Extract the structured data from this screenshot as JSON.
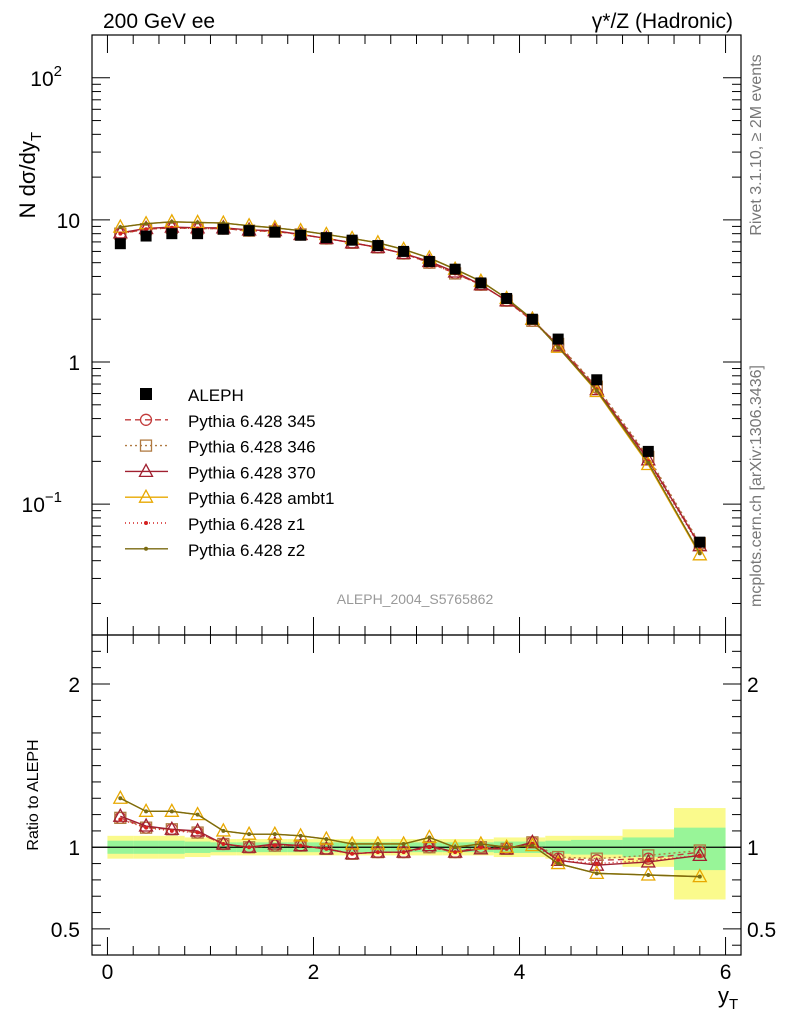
{
  "header": {
    "left": "200 GeV ee",
    "right": "γ*/Z (Hadronic)"
  },
  "side_labels": {
    "rivet": "Rivet 3.1.10, ≥ 2M events",
    "mcplots": "mcplots.cern.ch [arXiv:1306.3436]"
  },
  "watermark": "ALEPH_2004_S5765862",
  "chart_data": [
    {
      "type": "scatter",
      "ylabel_main": "N dσ/dy",
      "ylabel_sub": "T",
      "yscale": "log",
      "xlim": [
        -0.15,
        6.15
      ],
      "ylim": [
        0.012,
        200
      ],
      "y_ticks": [
        {
          "value": 0.1,
          "base": "10",
          "exp": "−1"
        },
        {
          "value": 1,
          "base": "1",
          "exp": ""
        },
        {
          "value": 10,
          "base": "10",
          "exp": ""
        },
        {
          "value": 100,
          "base": "10",
          "exp": "2"
        }
      ],
      "x": [
        0.125,
        0.375,
        0.625,
        0.875,
        1.125,
        1.375,
        1.625,
        1.875,
        2.125,
        2.375,
        2.625,
        2.875,
        3.125,
        3.375,
        3.625,
        3.875,
        4.125,
        4.375,
        4.75,
        5.25,
        5.75
      ],
      "data": {
        "name": "ALEPH",
        "values": [
          6.8,
          7.7,
          8.0,
          8.0,
          8.6,
          8.4,
          8.2,
          7.8,
          7.5,
          7.2,
          6.6,
          6.0,
          5.1,
          4.5,
          3.6,
          2.8,
          2.0,
          1.45,
          0.75,
          0.235,
          0.054
        ]
      },
      "series": [
        {
          "name": "Pythia 6.428 345",
          "color": "#c23b3b",
          "dash": "6,4",
          "marker": "circle",
          "values": [
            8.0,
            8.6,
            8.8,
            8.7,
            8.7,
            8.4,
            8.3,
            7.9,
            7.4,
            6.9,
            6.4,
            5.8,
            5.0,
            4.2,
            3.5,
            2.7,
            1.95,
            1.33,
            0.66,
            0.21,
            0.052
          ]
        },
        {
          "name": "Pythia 6.428 346",
          "color": "#b07a42",
          "dash": "2,3",
          "marker": "square",
          "values": [
            8.0,
            8.6,
            8.8,
            8.7,
            8.7,
            8.4,
            8.3,
            7.9,
            7.4,
            6.9,
            6.4,
            5.8,
            5.0,
            4.2,
            3.5,
            2.7,
            1.95,
            1.34,
            0.67,
            0.215,
            0.053
          ]
        },
        {
          "name": "Pythia 6.428 370",
          "color": "#a02030",
          "dash": "",
          "marker": "triangle",
          "values": [
            8.1,
            8.7,
            8.9,
            8.8,
            8.8,
            8.5,
            8.4,
            7.9,
            7.4,
            6.9,
            6.4,
            5.8,
            5.1,
            4.3,
            3.5,
            2.7,
            2.0,
            1.3,
            0.64,
            0.205,
            0.051
          ]
        },
        {
          "name": "Pythia 6.428 ambt1",
          "color": "#e8a800",
          "dash": "",
          "marker": "triangle",
          "values": [
            8.9,
            9.4,
            9.7,
            9.6,
            9.5,
            9.1,
            8.8,
            8.4,
            7.9,
            7.4,
            6.9,
            6.2,
            5.4,
            4.5,
            3.7,
            2.8,
            2.0,
            1.27,
            0.62,
            0.19,
            0.044
          ]
        },
        {
          "name": "Pythia 6.428 z1",
          "color": "#d42020",
          "dash": "1,3",
          "marker": "dot",
          "values": [
            8.0,
            8.6,
            8.8,
            8.7,
            8.7,
            8.4,
            8.3,
            7.9,
            7.4,
            6.9,
            6.4,
            5.8,
            5.0,
            4.2,
            3.5,
            2.7,
            1.95,
            1.3,
            0.64,
            0.2,
            0.05
          ]
        },
        {
          "name": "Pythia 6.428 z2",
          "color": "#7a6a10",
          "dash": "",
          "marker": "dot",
          "values": [
            8.9,
            9.4,
            9.7,
            9.6,
            9.5,
            9.1,
            8.8,
            8.4,
            7.9,
            7.4,
            6.9,
            6.2,
            5.4,
            4.5,
            3.7,
            2.8,
            2.0,
            1.27,
            0.63,
            0.195,
            0.045
          ]
        }
      ]
    },
    {
      "type": "line",
      "ylabel": "Ratio to ALEPH",
      "xlabel_main": "y",
      "xlabel_sub": "T",
      "xlim": [
        -0.15,
        6.15
      ],
      "ylim": [
        0.34,
        2.3
      ],
      "x_ticks": [
        0,
        2,
        4,
        6
      ],
      "y_ticks": [
        0.5,
        1,
        2
      ],
      "bands": {
        "edges": [
          0,
          0.25,
          0.5,
          0.75,
          1.0,
          1.25,
          1.5,
          1.75,
          2.0,
          2.25,
          2.5,
          2.75,
          3.0,
          3.25,
          3.5,
          3.75,
          4.0,
          4.25,
          4.5,
          5.0,
          5.5,
          6.0
        ],
        "yellow": [
          [
            0.93,
            1.07
          ],
          [
            0.93,
            1.07
          ],
          [
            0.93,
            1.07
          ],
          [
            0.94,
            1.06
          ],
          [
            0.95,
            1.05
          ],
          [
            0.95,
            1.05
          ],
          [
            0.95,
            1.05
          ],
          [
            0.95,
            1.05
          ],
          [
            0.95,
            1.05
          ],
          [
            0.95,
            1.05
          ],
          [
            0.95,
            1.05
          ],
          [
            0.95,
            1.05
          ],
          [
            0.95,
            1.05
          ],
          [
            0.95,
            1.05
          ],
          [
            0.95,
            1.05
          ],
          [
            0.94,
            1.06
          ],
          [
            0.94,
            1.06
          ],
          [
            0.93,
            1.07
          ],
          [
            0.93,
            1.07
          ],
          [
            0.88,
            1.11
          ],
          [
            0.68,
            1.24
          ]
        ],
        "green": [
          [
            0.96,
            1.04
          ],
          [
            0.96,
            1.04
          ],
          [
            0.96,
            1.04
          ],
          [
            0.965,
            1.035
          ],
          [
            0.97,
            1.03
          ],
          [
            0.97,
            1.03
          ],
          [
            0.97,
            1.03
          ],
          [
            0.97,
            1.03
          ],
          [
            0.97,
            1.03
          ],
          [
            0.97,
            1.03
          ],
          [
            0.97,
            1.03
          ],
          [
            0.97,
            1.03
          ],
          [
            0.97,
            1.03
          ],
          [
            0.97,
            1.03
          ],
          [
            0.97,
            1.03
          ],
          [
            0.965,
            1.035
          ],
          [
            0.965,
            1.035
          ],
          [
            0.96,
            1.04
          ],
          [
            0.955,
            1.045
          ],
          [
            0.94,
            1.06
          ],
          [
            0.86,
            1.12
          ]
        ],
        "green_color": "#98f598",
        "yellow_color": "#fafa8c"
      },
      "series": [
        {
          "name": "Pythia 6.428 345",
          "values": [
            1.18,
            1.12,
            1.11,
            1.09,
            1.02,
            1.0,
            1.01,
            1.01,
            0.99,
            0.96,
            0.97,
            0.97,
            1.0,
            0.97,
            1.0,
            0.99,
            1.03,
            0.93,
            0.92,
            0.93,
            0.97
          ]
        },
        {
          "name": "Pythia 6.428 346",
          "values": [
            1.18,
            1.12,
            1.11,
            1.09,
            1.02,
            1.0,
            1.01,
            1.01,
            0.99,
            0.96,
            0.97,
            0.97,
            1.0,
            0.97,
            1.0,
            0.99,
            1.03,
            0.94,
            0.93,
            0.95,
            0.98
          ]
        },
        {
          "name": "Pythia 6.428 370",
          "values": [
            1.19,
            1.13,
            1.11,
            1.1,
            1.02,
            1.0,
            1.02,
            1.01,
            0.99,
            0.96,
            0.97,
            0.97,
            1.01,
            0.97,
            0.99,
            0.99,
            1.03,
            0.92,
            0.89,
            0.91,
            0.95
          ]
        },
        {
          "name": "Pythia 6.428 ambt1",
          "values": [
            1.3,
            1.22,
            1.22,
            1.2,
            1.1,
            1.08,
            1.08,
            1.07,
            1.05,
            1.02,
            1.02,
            1.02,
            1.06,
            1.0,
            1.02,
            1.0,
            1.01,
            0.9,
            0.84,
            0.83,
            0.82
          ]
        },
        {
          "name": "Pythia 6.428 z1",
          "values": [
            1.17,
            1.12,
            1.1,
            1.09,
            1.02,
            1.0,
            1.01,
            1.01,
            0.99,
            0.96,
            0.97,
            0.97,
            1.0,
            0.97,
            1.0,
            0.99,
            1.02,
            0.92,
            0.9,
            0.92,
            0.95
          ]
        },
        {
          "name": "Pythia 6.428 z2",
          "values": [
            1.3,
            1.22,
            1.22,
            1.2,
            1.1,
            1.08,
            1.08,
            1.07,
            1.05,
            1.02,
            1.02,
            1.02,
            1.06,
            1.0,
            1.02,
            1.0,
            1.01,
            0.9,
            0.84,
            0.83,
            0.82
          ]
        }
      ]
    }
  ]
}
